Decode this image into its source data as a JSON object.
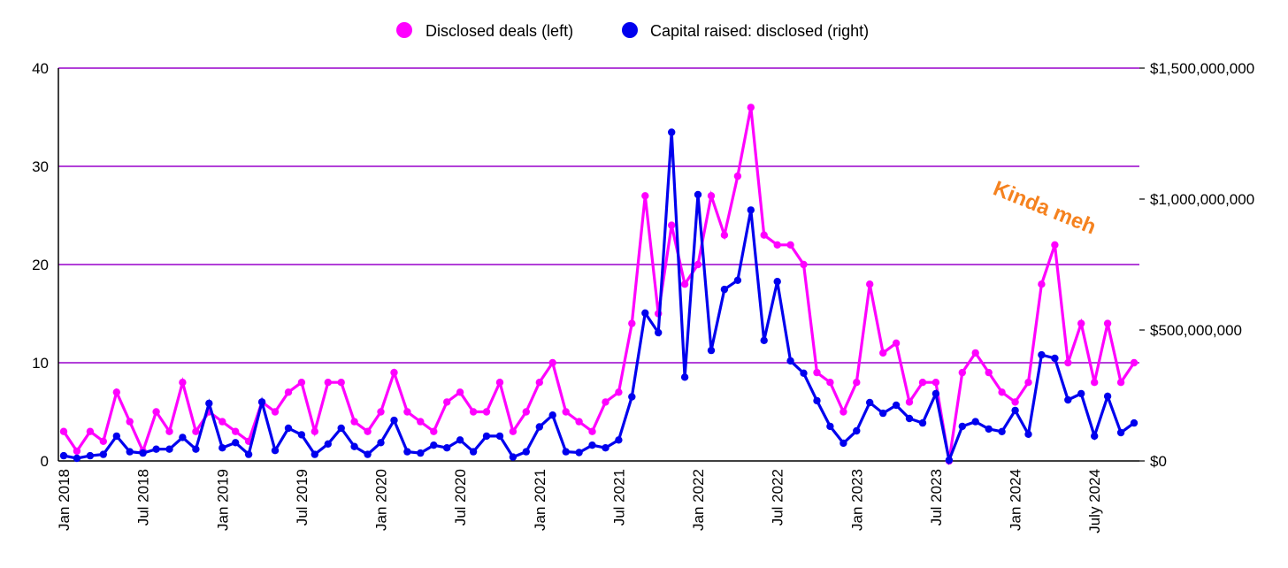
{
  "chart_data": {
    "type": "line",
    "title": "",
    "xlabel": "",
    "ylabel": "",
    "y2label": "",
    "legend_position": "top-center",
    "grid": true,
    "gridline_color": "#9900CC",
    "x_start": "Jan 2018",
    "x_end": "Oct 2024",
    "x_frequency": "monthly",
    "x_tick_labels": [
      {
        "index": 0,
        "label": "Jan 2018"
      },
      {
        "index": 6,
        "label": "Jul 2018"
      },
      {
        "index": 12,
        "label": "Jan 2019"
      },
      {
        "index": 18,
        "label": "Jul 2019"
      },
      {
        "index": 24,
        "label": "Jan 2020"
      },
      {
        "index": 30,
        "label": "Jul 2020"
      },
      {
        "index": 36,
        "label": "Jan 2021"
      },
      {
        "index": 42,
        "label": "Jul 2021"
      },
      {
        "index": 48,
        "label": "Jan 2022"
      },
      {
        "index": 54,
        "label": "Jul 2022"
      },
      {
        "index": 60,
        "label": "Jan 2023"
      },
      {
        "index": 66,
        "label": "Jul 2023"
      },
      {
        "index": 72,
        "label": "Jan 2024"
      },
      {
        "index": 78,
        "label": "July 2024"
      }
    ],
    "y_left": {
      "ylim": [
        0,
        40
      ],
      "ticks": [
        0,
        10,
        20,
        30,
        40
      ],
      "tick_labels": [
        "0",
        "10",
        "20",
        "30",
        "40"
      ]
    },
    "y_right": {
      "ylim": [
        0,
        1500000000
      ],
      "ticks": [
        0,
        500000000,
        1000000000,
        1500000000
      ],
      "tick_labels": [
        "$0",
        "$500,000,000",
        "$1,000,000,000",
        "$1,500,000,000"
      ]
    },
    "series": [
      {
        "name": "Disclosed deals (left)",
        "axis": "left",
        "color": "#FF00FF",
        "values": [
          3,
          1,
          3,
          2,
          7,
          4,
          1,
          5,
          3,
          8,
          3,
          5,
          4,
          3,
          2,
          6,
          5,
          7,
          8,
          3,
          8,
          8,
          4,
          3,
          5,
          9,
          5,
          4,
          3,
          6,
          7,
          5,
          5,
          8,
          3,
          5,
          8,
          10,
          5,
          4,
          3,
          6,
          7,
          14,
          27,
          15,
          24,
          18,
          20,
          27,
          23,
          29,
          36,
          23,
          22,
          22,
          20,
          9,
          8,
          5,
          8,
          18,
          11,
          12,
          6,
          8,
          8,
          0,
          9,
          11,
          9,
          7,
          6,
          8,
          18,
          22,
          10,
          14,
          8,
          14,
          8,
          10
        ]
      },
      {
        "name": "Capital raised: disclosed (right)",
        "axis": "right",
        "color": "#0000EE",
        "unit": "USD",
        "values": [
          20000000,
          10000000,
          20000000,
          25000000,
          95000000,
          35000000,
          30000000,
          45000000,
          45000000,
          90000000,
          45000000,
          220000000,
          50000000,
          70000000,
          25000000,
          225000000,
          40000000,
          125000000,
          100000000,
          25000000,
          65000000,
          125000000,
          55000000,
          25000000,
          70000000,
          155000000,
          35000000,
          30000000,
          60000000,
          50000000,
          80000000,
          35000000,
          95000000,
          95000000,
          15000000,
          35000000,
          130000000,
          175000000,
          35000000,
          32000000,
          60000000,
          50000000,
          80000000,
          245000000,
          565000000,
          490000000,
          1255000000,
          320000000,
          1017000000,
          422000000,
          655000000,
          690000000,
          958000000,
          460000000,
          685000000,
          382000000,
          335000000,
          230000000,
          132000000,
          68000000,
          115000000,
          223000000,
          182000000,
          213000000,
          162000000,
          145000000,
          257000000,
          3000000,
          132000000,
          150000000,
          122000000,
          112000000,
          193000000,
          102000000,
          405000000,
          392000000,
          233000000,
          257000000,
          95000000,
          247000000,
          108000000,
          145000000
        ]
      }
    ],
    "annotations": [
      {
        "text": "Kinda meh",
        "color": "#F5821F",
        "near_index": 75,
        "near_series": "Disclosed deals (left)"
      }
    ]
  }
}
